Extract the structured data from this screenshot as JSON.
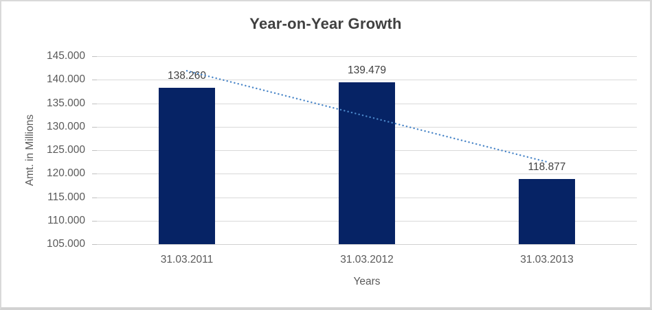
{
  "chart_data": {
    "type": "bar",
    "title": "Year-on-Year Growth",
    "xlabel": "Years",
    "ylabel": "Amt. in Millions",
    "categories": [
      "31.03.2011",
      "31.03.2012",
      "31.03.2013"
    ],
    "values": [
      138.26,
      139.479,
      118.877
    ],
    "data_labels": [
      "138.260",
      "139.479",
      "118.877"
    ],
    "ylim": [
      105,
      145
    ],
    "ytick_step": 5,
    "ytick_labels": [
      "105.000",
      "110.000",
      "115.000",
      "120.000",
      "125.000",
      "130.000",
      "135.000",
      "140.000",
      "145.000"
    ],
    "grid": true,
    "legend_position": "none",
    "trendline": {
      "type": "linear",
      "style": "dotted"
    },
    "colors": {
      "bar": "#062365",
      "trendline": "#4a86c8",
      "gridline": "#d9d9d9",
      "axis_line": "#d0d0d0",
      "tick_mark": "#bfbfbf",
      "title_text": "#404040",
      "data_label_text": "#404040",
      "axis_text": "#595959"
    }
  }
}
